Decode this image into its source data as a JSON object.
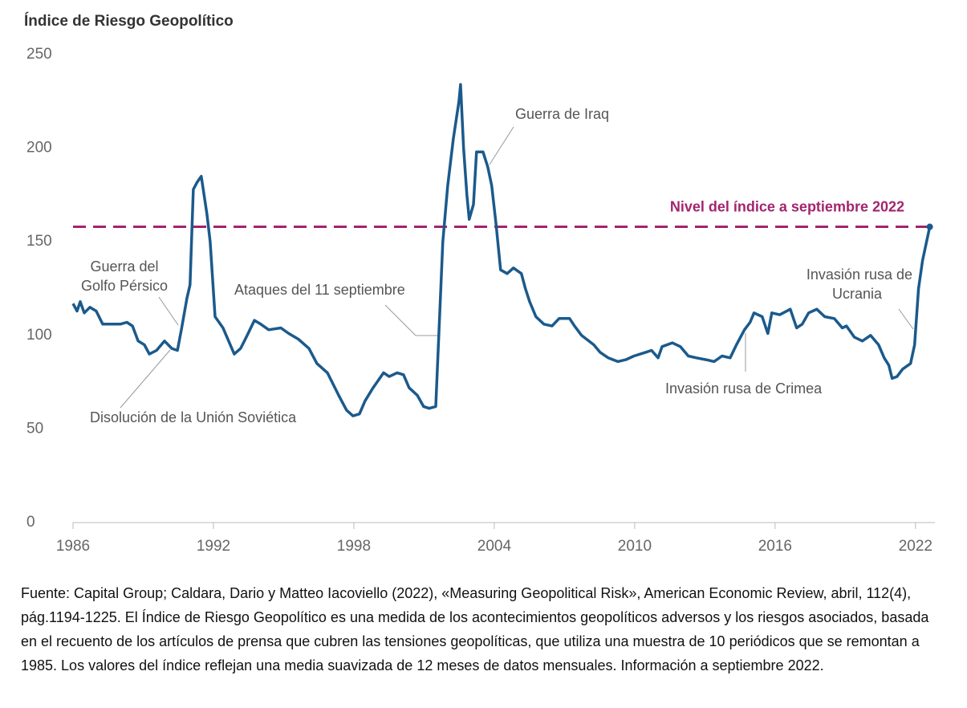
{
  "chart_data": {
    "type": "line",
    "title": "Índice de Riesgo Geopolítico",
    "color": "#1b5a8c",
    "x": [
      1986.0,
      1986.17,
      1986.31,
      1986.48,
      1986.72,
      1986.99,
      1987.27,
      1987.68,
      1988.02,
      1988.3,
      1988.54,
      1988.78,
      1989.05,
      1989.26,
      1989.57,
      1989.91,
      1990.22,
      1990.46,
      1990.63,
      1990.87,
      1991.0,
      1991.14,
      1991.31,
      1991.48,
      1991.72,
      1991.86,
      1992.07,
      1992.41,
      1992.65,
      1992.89,
      1993.16,
      1993.44,
      1993.75,
      1994.02,
      1994.36,
      1994.88,
      1995.22,
      1995.63,
      1996.08,
      1996.42,
      1996.87,
      1997.11,
      1997.35,
      1997.69,
      1997.96,
      1998.24,
      1998.48,
      1998.82,
      1998.99,
      1999.27,
      1999.51,
      1999.85,
      2000.12,
      2000.36,
      2000.71,
      2000.98,
      2001.22,
      2001.5,
      2001.63,
      2001.8,
      2002.01,
      2002.25,
      2002.49,
      2002.56,
      2002.69,
      2002.83,
      2002.93,
      2003.11,
      2003.24,
      2003.52,
      2003.72,
      2003.89,
      2004.07,
      2004.27,
      2004.55,
      2004.82,
      2005.16,
      2005.33,
      2005.51,
      2005.78,
      2006.12,
      2006.47,
      2006.77,
      2007.22,
      2007.43,
      2007.73,
      2008.25,
      2008.52,
      2008.87,
      2009.28,
      2009.62,
      2009.97,
      2010.48,
      2010.72,
      2011.0,
      2011.17,
      2011.61,
      2011.95,
      2012.29,
      2012.64,
      2013.05,
      2013.39,
      2013.73,
      2014.08,
      2014.35,
      2014.69,
      2014.93,
      2015.1,
      2015.45,
      2015.69,
      2015.86,
      2016.2,
      2016.65,
      2016.92,
      2017.16,
      2017.43,
      2017.78,
      2018.12,
      2018.53,
      2018.87,
      2019.05,
      2019.39,
      2019.73,
      2020.08,
      2020.42,
      2020.66,
      2020.86,
      2021.0,
      2021.21,
      2021.45,
      2021.79,
      2021.96,
      2022.13,
      2022.3,
      2022.61
    ],
    "values": [
      117,
      113,
      118,
      112,
      115,
      113,
      106,
      106,
      106,
      107,
      105,
      97,
      95,
      90,
      92,
      97,
      93,
      92,
      103,
      120,
      127,
      178,
      182,
      185,
      165,
      150,
      110,
      104,
      97,
      90,
      93,
      100,
      108,
      106,
      103,
      104,
      101,
      98,
      93,
      85,
      80,
      74,
      68,
      60,
      57,
      58,
      65,
      72,
      75,
      80,
      78,
      80,
      79,
      72,
      68,
      62,
      61,
      62,
      100,
      150,
      180,
      205,
      225,
      234,
      200,
      175,
      162,
      170,
      198,
      198,
      190,
      180,
      160,
      135,
      133,
      136,
      133,
      125,
      118,
      110,
      106,
      105,
      109,
      109,
      105,
      100,
      95,
      91,
      88,
      86,
      87,
      89,
      91,
      92,
      88,
      94,
      96,
      94,
      89,
      88,
      87,
      86,
      89,
      88,
      95,
      103,
      107,
      112,
      110,
      101,
      112,
      111,
      114,
      104,
      106,
      112,
      114,
      110,
      109,
      104,
      105,
      99,
      97,
      100,
      95,
      88,
      84,
      77,
      78,
      82,
      85,
      95,
      125,
      140,
      158
    ],
    "xlim": [
      1986,
      2023
    ],
    "ylim": [
      0,
      250
    ],
    "xticks": [
      1986,
      1992,
      1998,
      2004,
      2010,
      2016,
      2022
    ],
    "yticks": [
      0,
      50,
      100,
      150,
      200,
      250
    ],
    "reference_line": {
      "value": 158,
      "label": "Nivel del índice a septiembre 2022",
      "color": "#a3246f"
    },
    "annotations": [
      {
        "lines": [
          "Guerra del",
          "Golfo Pérsico"
        ]
      },
      {
        "lines": [
          "Disolución de la Unión Soviética"
        ]
      },
      {
        "lines": [
          "Ataques del 11 septiembre"
        ]
      },
      {
        "lines": [
          "Guerra de Iraq"
        ]
      },
      {
        "lines": [
          "Invasión rusa de",
          "Ucrania"
        ]
      },
      {
        "lines": [
          "Invasión rusa de Crimea"
        ]
      }
    ]
  },
  "source": "Fuente: Capital Group; Caldara, Dario y Matteo Iacoviello (2022), «Measuring Geopolitical Risk», American Economic Review, abril, 112(4), pág.1194-1225. El Índice de Riesgo Geopolítico es una medida de los acontecimientos geopolíticos adversos y los riesgos asociados, basada en el recuento de los artículos de prensa que cubren las tensiones geopolíticas, que utiliza una muestra de 10 periódicos que se remontan a 1985. Los valores del índice reflejan una media suavizada de 12 meses de datos mensuales. Información a septiembre 2022."
}
